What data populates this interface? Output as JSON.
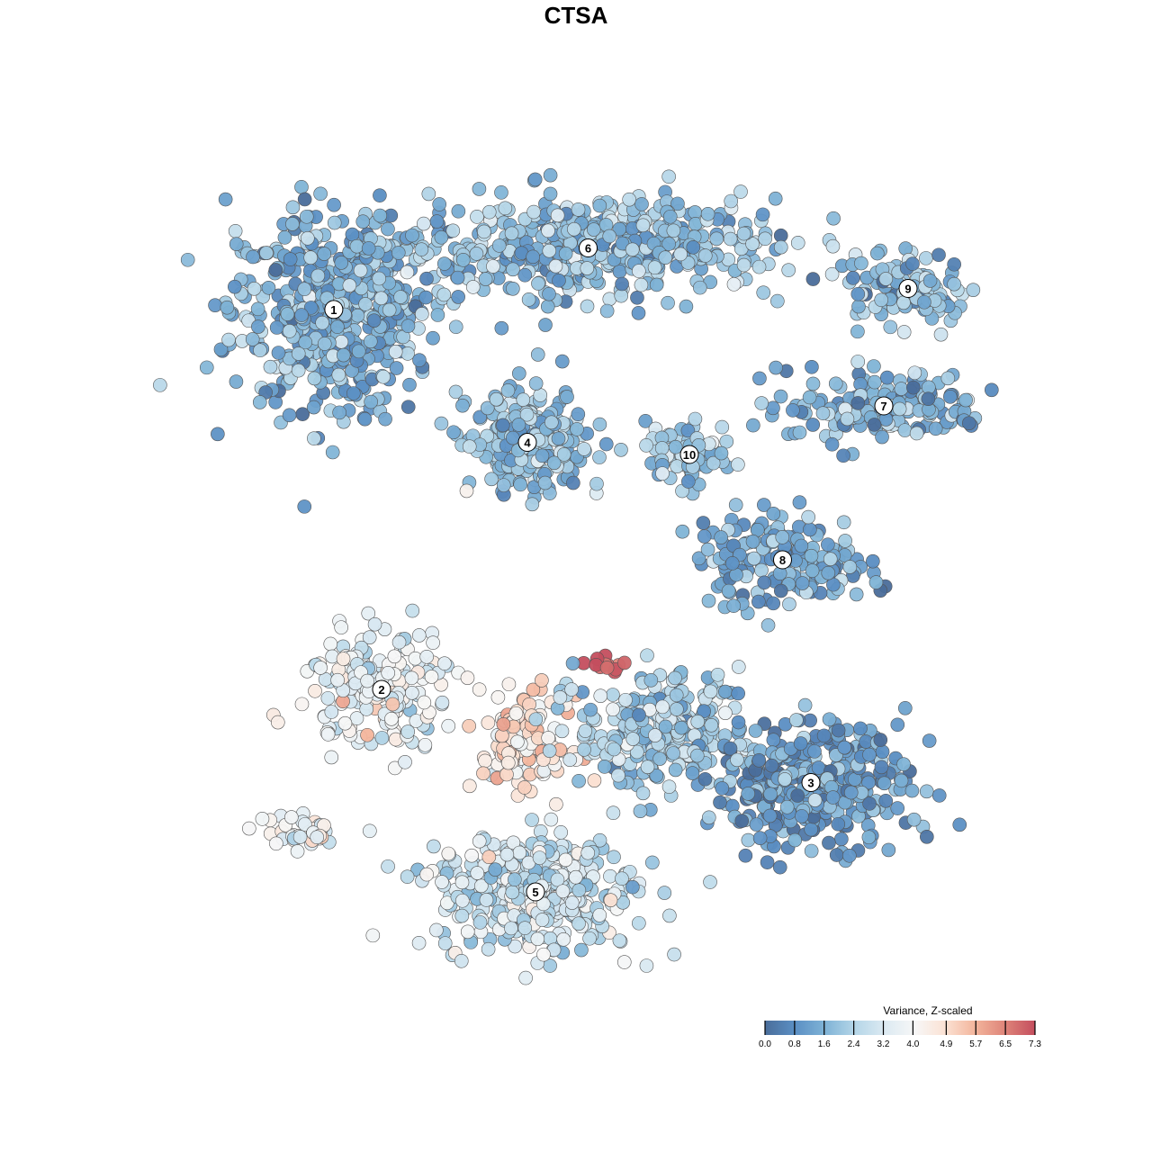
{
  "chart_data": {
    "type": "scatter",
    "title": "CTSA",
    "xlabel": "",
    "ylabel": "",
    "axes_visible": false,
    "grid": false,
    "xlim": [
      -10,
      10
    ],
    "ylim": [
      -10,
      10
    ],
    "color_legend": {
      "title": "Variance, Z-scaled",
      "ticks": [
        "0.0",
        "0.8",
        "1.6",
        "2.4",
        "3.2",
        "4.0",
        "4.9",
        "5.7",
        "6.5",
        "7.3"
      ],
      "range": [
        0,
        7.3
      ],
      "placement": "bottom-right",
      "colors": [
        "#4a6d9a",
        "#5b8fc4",
        "#7fb3d6",
        "#b5d6e8",
        "#dceaf2",
        "#f7f7f7",
        "#fbe2d4",
        "#f3b59c",
        "#de8479",
        "#c44e5e"
      ]
    },
    "clusters": [
      {
        "label": "1",
        "x": -5.98,
        "y": 6.58,
        "sx": 2.3,
        "sy": 2.2,
        "n": 520,
        "mean": 1.5
      },
      {
        "label": "6",
        "x": 0.3,
        "y": 8.1,
        "sx": 4.2,
        "sy": 1.1,
        "n": 520,
        "mean": 1.8
      },
      {
        "label": "9",
        "x": 8.2,
        "y": 7.1,
        "sx": 1.4,
        "sy": 0.8,
        "n": 110,
        "mean": 1.8
      },
      {
        "label": "7",
        "x": 7.6,
        "y": 4.2,
        "sx": 2.3,
        "sy": 0.8,
        "n": 180,
        "mean": 1.5
      },
      {
        "label": "4",
        "x": -1.2,
        "y": 3.3,
        "sx": 1.3,
        "sy": 1.1,
        "n": 240,
        "mean": 1.8
      },
      {
        "label": "10",
        "x": 2.8,
        "y": 3.0,
        "sx": 1.0,
        "sy": 0.8,
        "n": 70,
        "mean": 2.2
      },
      {
        "label": "8",
        "x": 5.1,
        "y": 0.4,
        "sx": 1.9,
        "sy": 1.0,
        "n": 180,
        "mean": 1.3
      },
      {
        "label": "2",
        "x": -4.8,
        "y": -2.8,
        "sx": 1.7,
        "sy": 1.3,
        "n": 200,
        "mean": 3.6
      },
      {
        "label": "",
        "x": -1.3,
        "y": -4.1,
        "sx": 1.0,
        "sy": 1.0,
        "n": 120,
        "mean": 4.6
      },
      {
        "label": "",
        "x": 0.7,
        "y": -2.2,
        "sx": 0.4,
        "sy": 0.2,
        "n": 12,
        "mean": 7.0
      },
      {
        "label": "",
        "x": 2.0,
        "y": -3.8,
        "sx": 1.8,
        "sy": 1.3,
        "n": 260,
        "mean": 2.2
      },
      {
        "label": "3",
        "x": 5.8,
        "y": -5.1,
        "sx": 2.2,
        "sy": 1.4,
        "n": 380,
        "mean": 1.0
      },
      {
        "label": "5",
        "x": -1.0,
        "y": -7.8,
        "sx": 2.2,
        "sy": 1.3,
        "n": 420,
        "mean": 2.9
      },
      {
        "label": "",
        "x": -6.8,
        "y": -6.3,
        "sx": 1.0,
        "sy": 0.4,
        "n": 40,
        "mean": 3.8
      }
    ]
  }
}
